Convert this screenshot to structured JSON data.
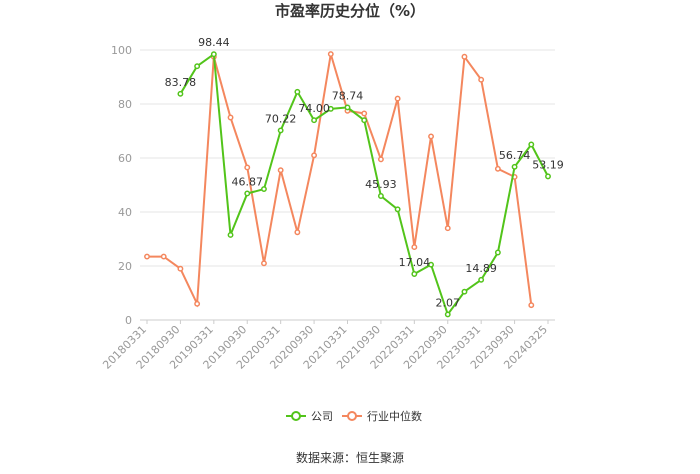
{
  "chart_data": {
    "type": "line",
    "title": "市盈率历史分位（%）",
    "xlabel": "",
    "ylabel": "",
    "ylim": [
      0,
      100
    ],
    "yticks": [
      0,
      20,
      40,
      60,
      80,
      100
    ],
    "grid": true,
    "legend_position": "bottom",
    "categories": [
      "20180331",
      "20180630",
      "20180930",
      "20181231",
      "20190331",
      "20190630",
      "20190930",
      "20191231",
      "20200331",
      "20200630",
      "20200930",
      "20201231",
      "20210331",
      "20210630",
      "20210930",
      "20211231",
      "20220331",
      "20220630",
      "20220930",
      "20221231",
      "20230331",
      "20230630",
      "20230930",
      "20231231",
      "20240325"
    ],
    "xticks": [
      "20180331",
      "20180930",
      "20190331",
      "20190930",
      "20200331",
      "20200930",
      "20210331",
      "20210930",
      "20220331",
      "20220930",
      "20230331",
      "20230930",
      "20240325"
    ],
    "series": [
      {
        "name": "公司",
        "color": "#52c41a",
        "values": [
          null,
          null,
          83.78,
          94.0,
          98.44,
          31.5,
          46.87,
          48.5,
          70.22,
          84.5,
          74.0,
          78.2,
          78.74,
          74.0,
          45.93,
          41.0,
          17.04,
          20.5,
          2.07,
          10.5,
          14.89,
          25.0,
          56.74,
          65.0,
          53.19
        ],
        "labels": [
          null,
          null,
          "83.78",
          null,
          "98.44",
          null,
          "46.87",
          null,
          "70.22",
          null,
          "74.00",
          null,
          "78.74",
          null,
          "45.93",
          null,
          "17.04",
          null,
          "2.07",
          null,
          "14.89",
          null,
          "56.74",
          null,
          "53.19"
        ]
      },
      {
        "name": "行业中位数",
        "color": "#f4875e",
        "values": [
          23.5,
          23.5,
          19.0,
          6.0,
          97.5,
          75.0,
          56.5,
          21.0,
          55.5,
          32.5,
          61.0,
          98.5,
          77.5,
          76.5,
          59.5,
          82.0,
          27.0,
          68.0,
          34.0,
          97.5,
          89.0,
          56.0,
          53.0,
          5.5,
          null
        ]
      }
    ]
  },
  "source": "数据来源：恒生聚源"
}
